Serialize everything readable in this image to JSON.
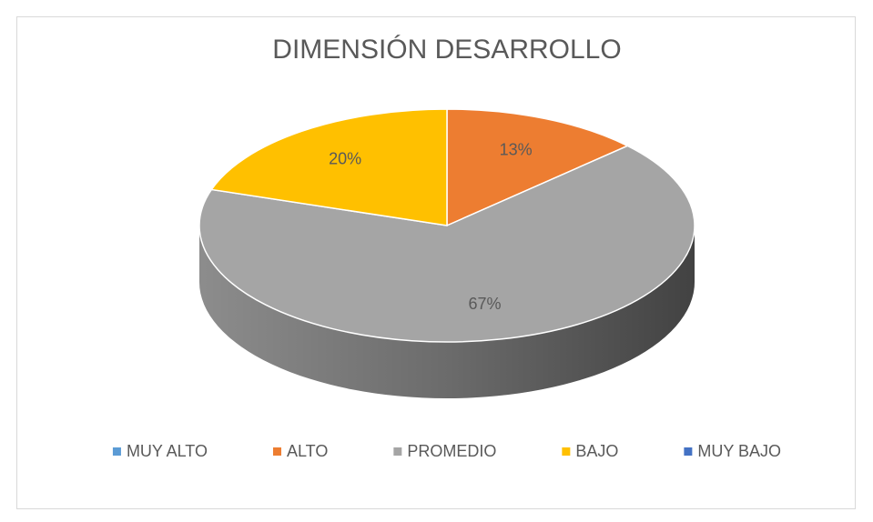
{
  "chart_data": {
    "type": "pie",
    "title": "DIMENSIÓN DESARROLLO",
    "categories": [
      "MUY ALTO",
      "ALTO",
      "PROMEDIO",
      "BAJO",
      "MUY BAJO"
    ],
    "values": [
      0,
      13,
      67,
      20,
      0
    ],
    "value_labels": [
      null,
      "13%",
      "67%",
      "20%",
      null
    ],
    "colors": [
      "#5b9bd5",
      "#ed7d31",
      "#a5a5a5",
      "#ffc000",
      "#4472c4"
    ],
    "legend": "bottom"
  }
}
